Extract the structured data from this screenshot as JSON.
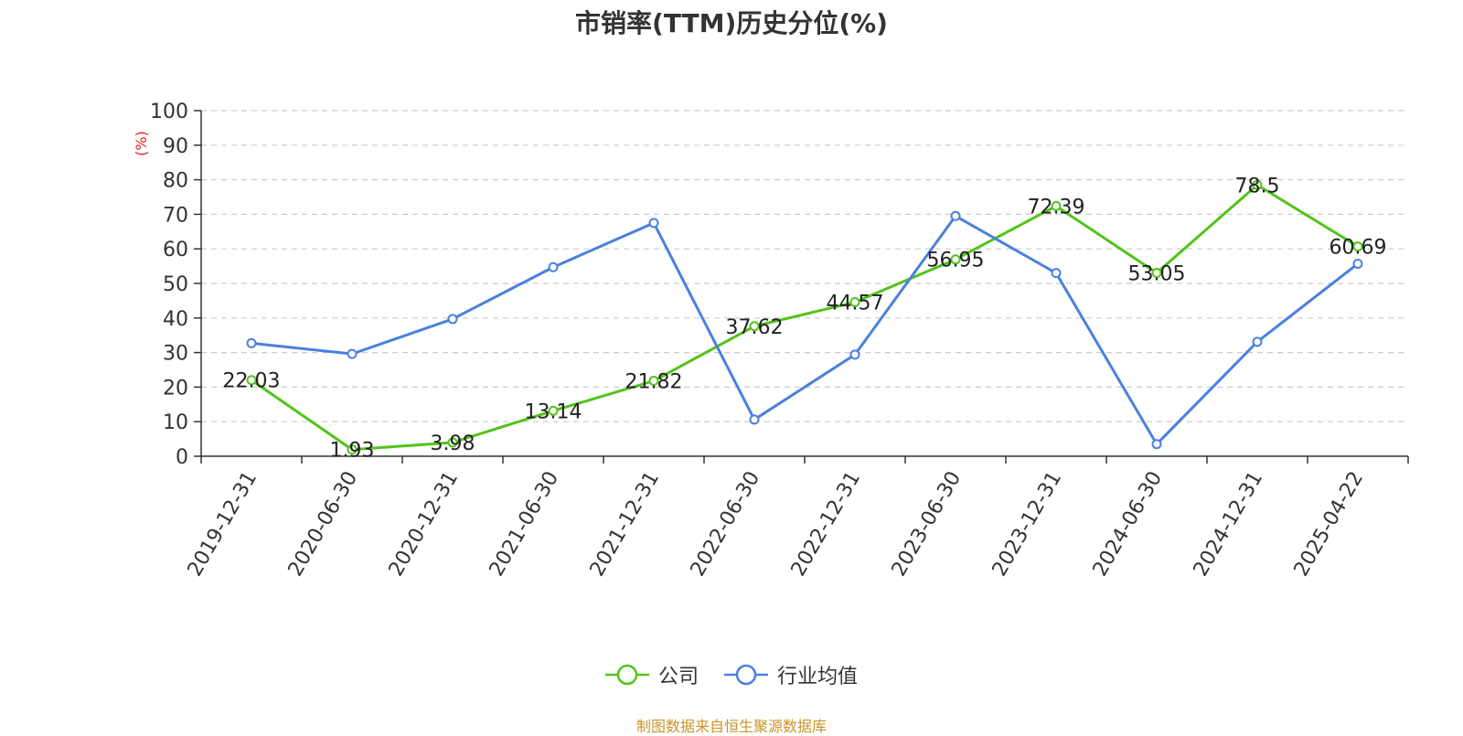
{
  "chart_data": {
    "type": "line",
    "title": "市销率(TTM)历史分位(%)",
    "ylabel": "(%)",
    "ylim": [
      0,
      100
    ],
    "yticks": [
      0,
      10,
      20,
      30,
      40,
      50,
      60,
      70,
      80,
      90,
      100
    ],
    "grid": true,
    "legend_position": "bottom",
    "categories": [
      "2019-12-31",
      "2020-06-30",
      "2020-12-31",
      "2021-06-30",
      "2021-12-31",
      "2022-06-30",
      "2022-12-31",
      "2023-06-30",
      "2023-12-31",
      "2024-06-30",
      "2024-12-31",
      "2025-04-22"
    ],
    "series": [
      {
        "name": "公司",
        "color": "#52c41a",
        "values": [
          22.03,
          1.93,
          3.98,
          13.14,
          21.82,
          37.62,
          44.57,
          56.95,
          72.39,
          53.05,
          78.5,
          60.69
        ],
        "data_labels": [
          "22.03",
          "1.93",
          "3.98",
          "13.14",
          "21.82",
          "37.62",
          "44.57",
          "56.95",
          "72.39",
          "53.05",
          "78.5",
          "60.69"
        ]
      },
      {
        "name": "行业均值",
        "color": "#4a80e0",
        "values": [
          32.7,
          29.6,
          39.7,
          54.7,
          67.5,
          10.6,
          29.4,
          69.5,
          53.0,
          3.5,
          33.1,
          55.7
        ]
      }
    ]
  },
  "source_note": "制图数据来自恒生聚源数据库"
}
